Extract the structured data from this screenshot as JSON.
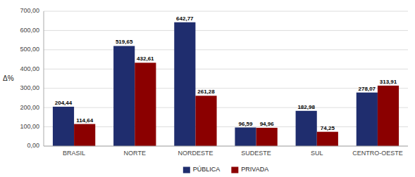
{
  "chart_data": {
    "type": "bar",
    "ylabel": "Δ%",
    "categories": [
      "BRASIL",
      "NORTE",
      "NORDESTE",
      "SUDESTE",
      "SUL",
      "CENTRO-OESTE"
    ],
    "series": [
      {
        "name": "PÚBLICA",
        "color": "#1F2D6E",
        "values": [
          204.44,
          519.65,
          642.77,
          96.59,
          182.98,
          278.07
        ],
        "value_labels": [
          "204,44",
          "519,65",
          "642,77",
          "96,59",
          "182,98",
          "278,07"
        ]
      },
      {
        "name": "PRIVADA",
        "color": "#8B0000",
        "values": [
          114.64,
          432.61,
          261.28,
          94.96,
          74.25,
          313.91
        ],
        "value_labels": [
          "114,64",
          "432,61",
          "261,28",
          "94,96",
          "74,25",
          "313,91"
        ]
      }
    ],
    "ylim": [
      0,
      700
    ],
    "yticks": [
      {
        "value": 0,
        "label": "0,00"
      },
      {
        "value": 100,
        "label": "100,00"
      },
      {
        "value": 200,
        "label": "200,00"
      },
      {
        "value": 300,
        "label": "300,00"
      },
      {
        "value": 400,
        "label": "400,00"
      },
      {
        "value": 500,
        "label": "500,00"
      },
      {
        "value": 600,
        "label": "600,00"
      },
      {
        "value": 700,
        "label": "700,00"
      }
    ],
    "grid": true,
    "legend": "bottom",
    "data_labels": true
  }
}
